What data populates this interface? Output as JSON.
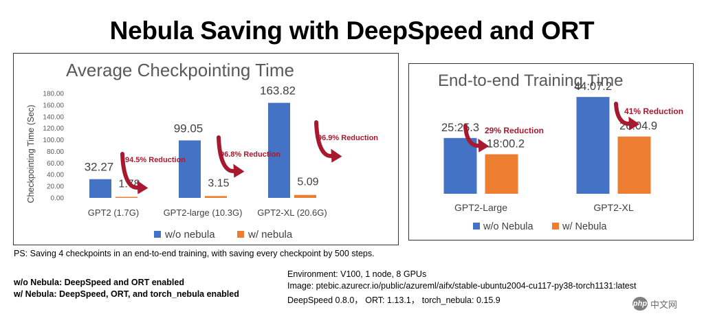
{
  "title": "Nebula Saving with DeepSpeed and ORT",
  "colors": {
    "without": "#4472c4",
    "with": "#ed7d31",
    "arrow": "#a6192e",
    "annotation": "#a6192e"
  },
  "chart_data": [
    {
      "type": "bar",
      "title": "Average Checkpointing Time",
      "ylabel": "Checkpointing Time (Sec)",
      "xlabel": "",
      "ylim": [
        0,
        180
      ],
      "ytick_step": 20,
      "ytick_labels": [
        "0.00",
        "20.00",
        "40.00",
        "60.00",
        "80.00",
        "100.00",
        "120.00",
        "140.00",
        "160.00",
        "180.00"
      ],
      "categories": [
        "GPT2 (1.7G)",
        "GPT2-large (10.3G)",
        "GPT2-XL (20.6G)"
      ],
      "series": [
        {
          "name": "w/o nebula",
          "values": [
            32.27,
            99.05,
            163.82
          ],
          "labels": [
            "32.27",
            "99.05",
            "163.82"
          ]
        },
        {
          "name": "w/ nebula",
          "values": [
            1.78,
            3.15,
            5.09
          ],
          "labels": [
            "1.78",
            "3.15",
            "5.09"
          ]
        }
      ],
      "annotations": [
        "94.5% Reduction",
        "96.8% Reduction",
        "96.9% Reduction"
      ],
      "legend_position": "bottom",
      "grid": false
    },
    {
      "type": "bar",
      "title": "End-to-end Training Time",
      "ylabel": "",
      "xlabel": "",
      "ylim": [
        0,
        2800
      ],
      "value_unit": "seconds",
      "categories": [
        "GPT2-Large",
        "GPT2-XL"
      ],
      "series": [
        {
          "name": "w/o Nebula",
          "values": [
            1525.3,
            2647.2
          ],
          "labels": [
            "25:25.3",
            "44:07.2"
          ]
        },
        {
          "name": "w/ Nebula",
          "values": [
            1080.2,
            1564.9
          ],
          "labels": [
            "18:00.2",
            "26:04.9"
          ]
        }
      ],
      "annotations": [
        "29% Reduction",
        "41% Reduction"
      ],
      "legend_position": "bottom",
      "grid": false
    }
  ],
  "notes": {
    "ps": "PS: Saving 4 checkpoints in an end-to-end training, with saving every checkpoint by 500 steps.",
    "definitions": [
      "w/o Nebula: DeepSpeed and ORT enabled",
      "w/ Nebula: DeepSpeed, ORT, and torch_nebula enabled"
    ],
    "environment": [
      "Environment: V100, 1 node, 8 GPUs",
      "Image: ptebic.azurecr.io/public/azureml/aifx/stable-ubuntu2004-cu117-py38-torch1131:latest",
      "DeepSpeed 0.8.0， ORT: 1.13.1， torch_nebula:  0.15.9"
    ]
  },
  "watermark": {
    "logo": "php",
    "text": "中文网"
  }
}
